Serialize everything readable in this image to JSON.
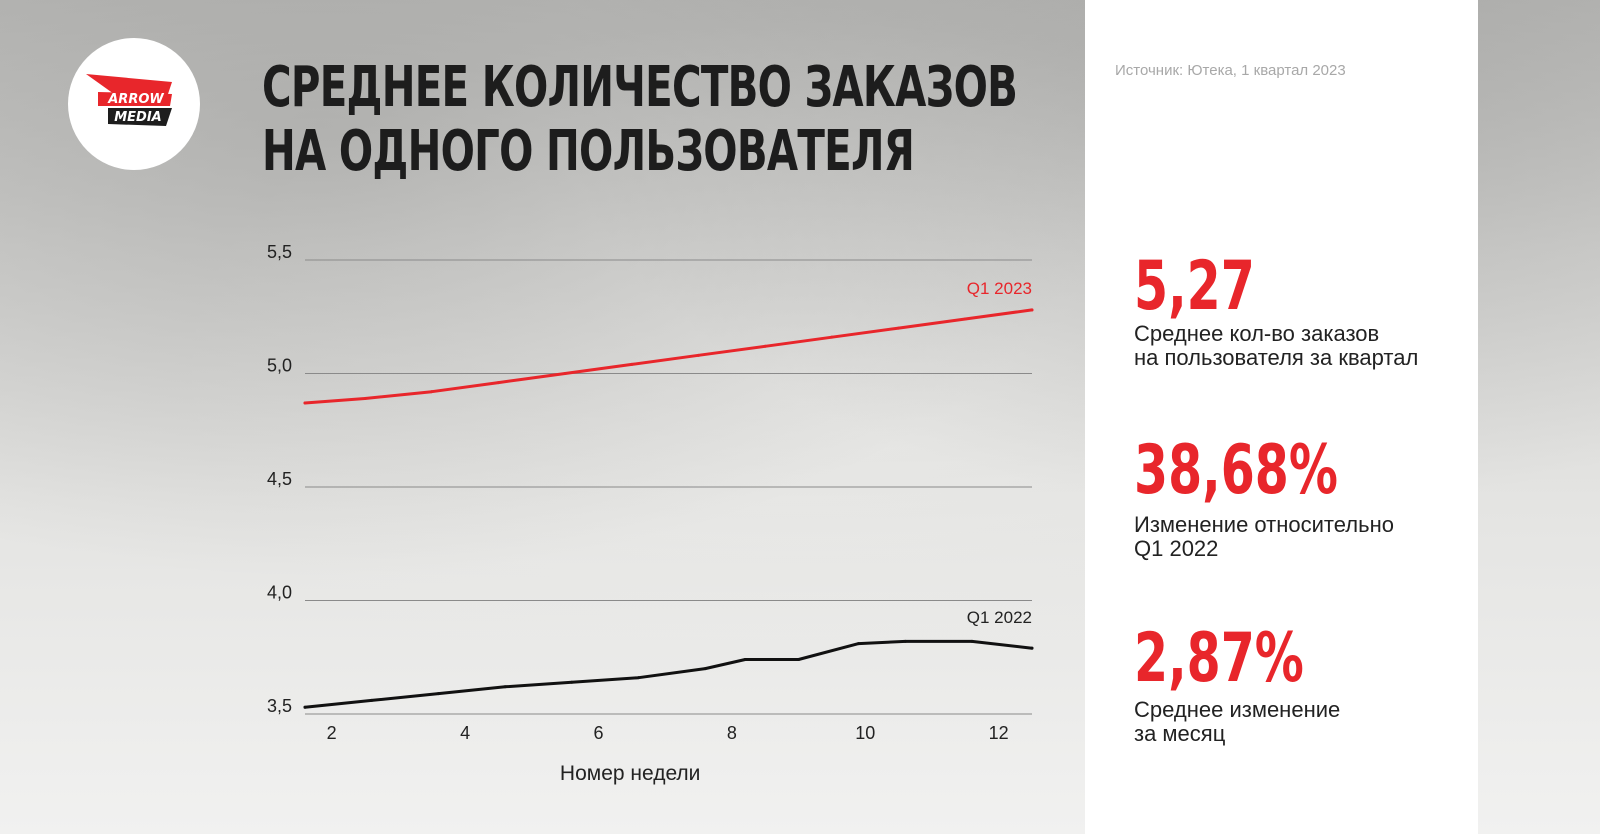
{
  "logo": {
    "line1": "ARROW",
    "line2": "MEDIA"
  },
  "title": {
    "line1": "СРЕДНЕЕ КОЛИЧЕСТВО ЗАКАЗОВ",
    "line2": "НА ОДНОГО ПОЛЬЗОВАТЕЛЯ"
  },
  "source": "Источник: Ютека, 1 квартал 2023",
  "stats": [
    {
      "value": "5,27",
      "desc1": "Среднее кол-во заказов",
      "desc2": "на пользователя за квартал"
    },
    {
      "value": "38,68%",
      "desc1": "Изменение относительно",
      "desc2": "Q1 2022"
    },
    {
      "value": "2,87%",
      "desc1": "Среднее изменение",
      "desc2": "за месяц"
    }
  ],
  "colors": {
    "accent": "#e8262b",
    "dark": "#1d1d1d",
    "grid": "#8a8a8a"
  },
  "chart_data": {
    "type": "line",
    "xlabel": "Номер недели",
    "ylabel": "",
    "xlim": [
      1.6,
      12.5
    ],
    "ylim": [
      3.5,
      5.5
    ],
    "x_ticks": [
      2,
      4,
      6,
      8,
      10,
      12
    ],
    "x_tick_labels": [
      "2",
      "4",
      "6",
      "8",
      "10",
      "12"
    ],
    "y_ticks": [
      3.5,
      4.0,
      4.5,
      5.0,
      5.5
    ],
    "y_tick_labels": [
      "3,5",
      "4,0",
      "4,5",
      "5,0",
      "5,5"
    ],
    "grid": "horizontal",
    "series": [
      {
        "name": "Q1 2023",
        "color": "#e8262b",
        "x": [
          1.6,
          2.5,
          3.5,
          4.5,
          5.5,
          6.5,
          7.5,
          8.5,
          9.5,
          10.5,
          11.5,
          12.5
        ],
        "values": [
          4.87,
          4.89,
          4.92,
          4.96,
          5.0,
          5.04,
          5.08,
          5.12,
          5.16,
          5.2,
          5.24,
          5.28
        ]
      },
      {
        "name": "Q1 2022",
        "color": "#111111",
        "x": [
          1.6,
          2.6,
          3.6,
          4.6,
          5.6,
          6.6,
          7.6,
          8.2,
          9.0,
          9.9,
          10.6,
          11.6,
          12.5
        ],
        "values": [
          3.53,
          3.56,
          3.59,
          3.62,
          3.64,
          3.66,
          3.7,
          3.74,
          3.74,
          3.81,
          3.82,
          3.82,
          3.79
        ]
      }
    ]
  }
}
